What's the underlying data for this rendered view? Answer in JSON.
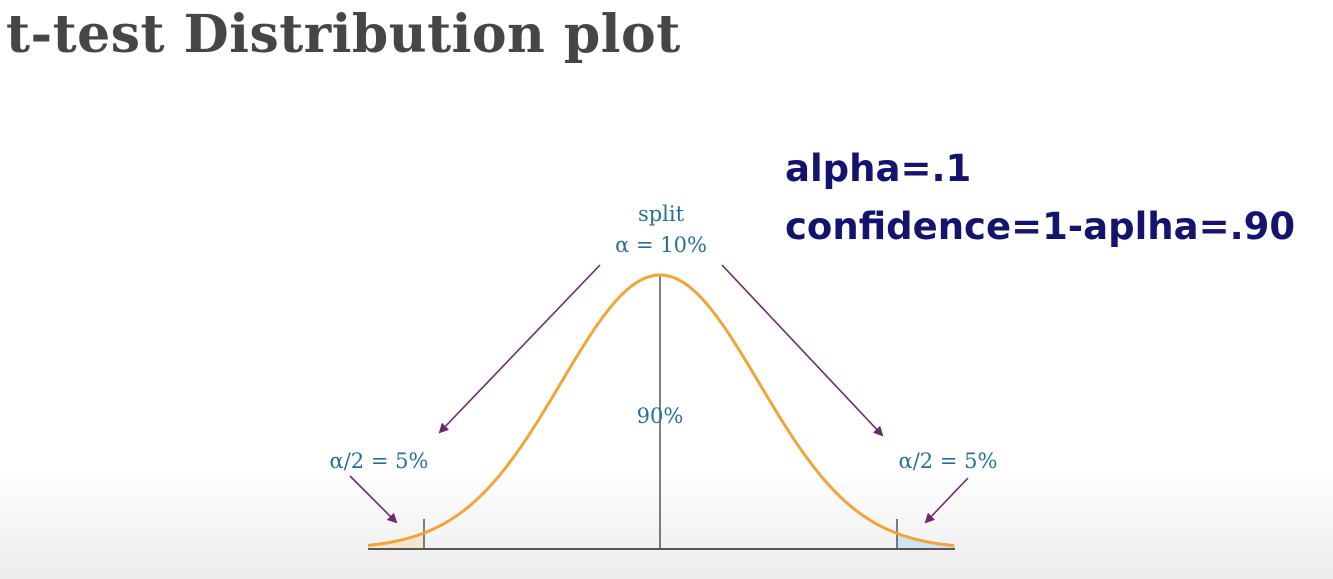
{
  "title": "t-test Distribution plot",
  "params": {
    "alpha_line": "alpha=.1",
    "confidence_line": "confidence=1-aplha=.90"
  },
  "diagram": {
    "split_label": "split",
    "alpha_total_label": "α = 10%",
    "center_label": "90%",
    "left_tail_label": "α/2 = 5%",
    "right_tail_label": "α/2 = 5%"
  },
  "colors": {
    "curve": "#f0a53a",
    "arrow": "#6a2a6e",
    "label": "#2a6f9a",
    "params_text": "#14146e",
    "title_text": "#464646",
    "left_tail_fill": "#f6e6cf",
    "right_tail_fill": "#cfe3f0"
  }
}
